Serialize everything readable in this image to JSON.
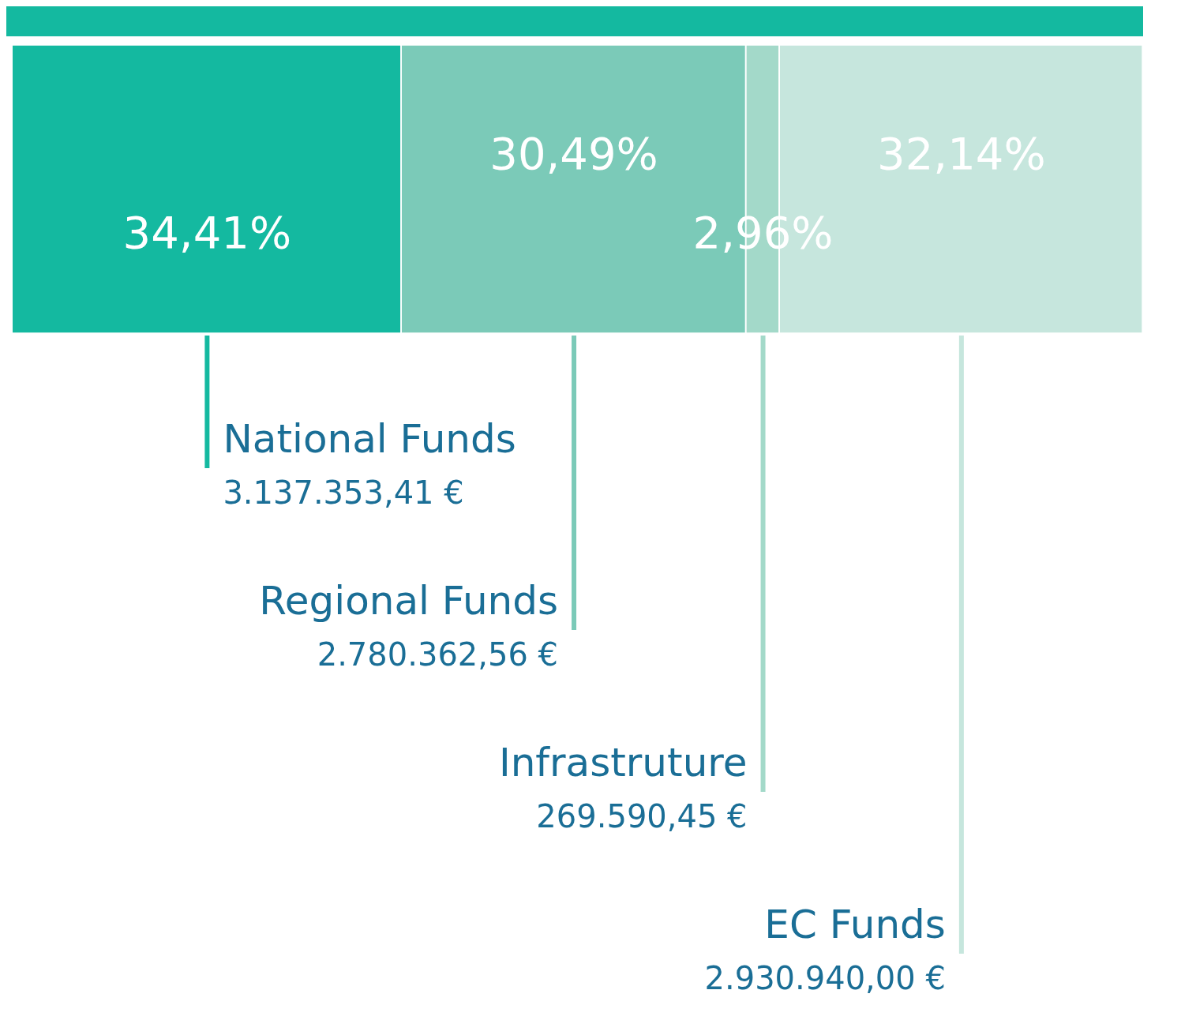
{
  "chart_data": {
    "type": "bar",
    "orientation": "horizontal",
    "stacked": true,
    "categories": [
      null
    ],
    "xlim": [
      0,
      100
    ],
    "tick_labels": false,
    "grid": false,
    "legend": false,
    "series": [
      {
        "name": "National Funds",
        "color": "#14b9a0",
        "values": [
          34.41
        ],
        "value_labels": [
          "34,41%"
        ]
      },
      {
        "name": "Regional Funds",
        "color": "#7bcab8",
        "values": [
          30.49
        ],
        "value_labels": [
          "30,49%"
        ]
      },
      {
        "name": "Infrastruture",
        "color": "#a3d9c9",
        "values": [
          2.96
        ],
        "value_labels": [
          "2,96%"
        ]
      },
      {
        "name": "EC Funds",
        "color": "#c6e6dd",
        "values": [
          32.14
        ],
        "value_labels": [
          "32,14%"
        ]
      }
    ],
    "annotations": [
      "3.137.353,41 €",
      "2.780.362,56 €",
      "269.590,45 €",
      "2.930.940,00 €"
    ]
  }
}
